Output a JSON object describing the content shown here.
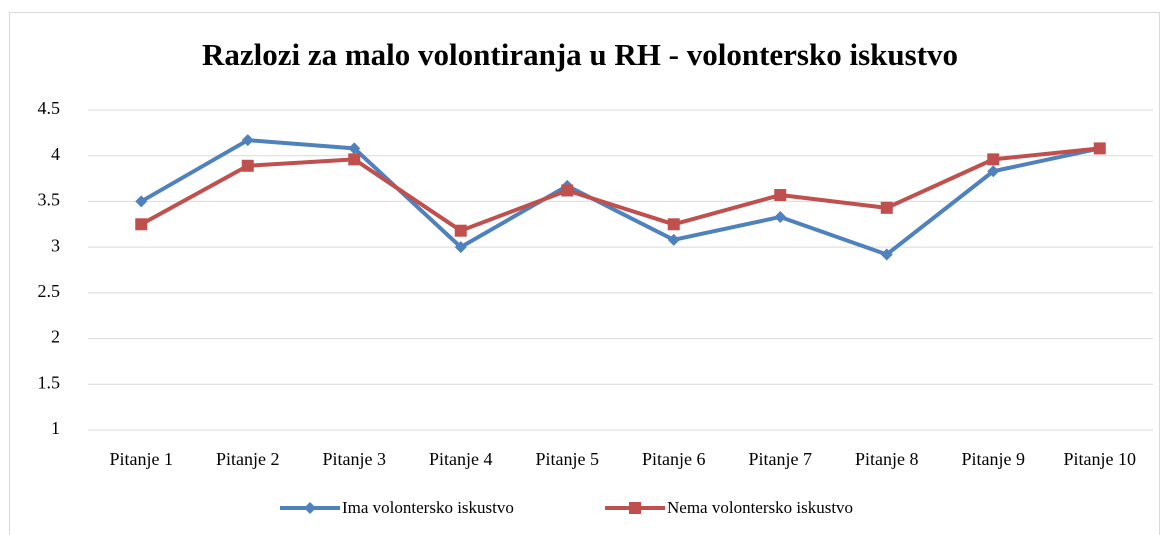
{
  "chart_data": {
    "type": "line",
    "title": "Razlozi za malo volontiranja u RH - volontersko iskustvo",
    "categories": [
      "Pitanje 1",
      "Pitanje 2",
      "Pitanje 3",
      "Pitanje 4",
      "Pitanje 5",
      "Pitanje 6",
      "Pitanje 7",
      "Pitanje 8",
      "Pitanje 9",
      "Pitanje 10"
    ],
    "series": [
      {
        "name": "Ima volontersko iskustvo",
        "color": "#4f81bd",
        "marker": "diamond",
        "values": [
          3.5,
          4.17,
          4.08,
          3.0,
          3.67,
          3.08,
          3.33,
          2.92,
          3.83,
          4.08
        ]
      },
      {
        "name": "Nema volontersko iskustvo",
        "color": "#c0504d",
        "marker": "square",
        "values": [
          3.25,
          3.89,
          3.96,
          3.18,
          3.62,
          3.25,
          3.57,
          3.43,
          3.96,
          4.08
        ]
      }
    ],
    "ylim": [
      1,
      4.5
    ],
    "yticks": [
      1,
      1.5,
      2,
      2.5,
      3,
      3.5,
      4,
      4.5
    ],
    "grid": true,
    "legend": "bottom"
  }
}
